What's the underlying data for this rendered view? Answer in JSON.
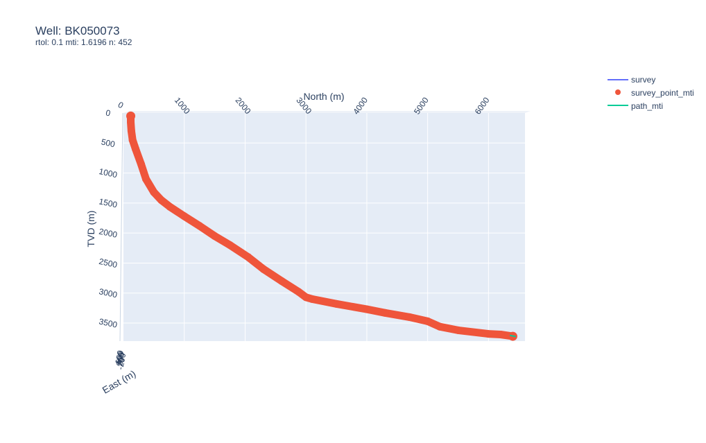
{
  "chart_data": {
    "type": "line",
    "title": "Well: BK050073",
    "subtitle": "rtol: 0.1 mti: 1.6196 n: 452",
    "xaxis": {
      "label": "North (m)",
      "range": [
        0,
        6600
      ],
      "ticks": [
        0,
        1000,
        2000,
        3000,
        4000,
        5000,
        6000
      ],
      "tick_labels": [
        "0",
        "1000",
        "2000",
        "3000",
        "4000",
        "5000",
        "6000"
      ]
    },
    "yaxis": {
      "label": "TVD (m)",
      "range": [
        0,
        3800
      ],
      "reversed": true,
      "ticks": [
        0,
        500,
        1000,
        1500,
        2000,
        2500,
        3000,
        3500
      ],
      "tick_labels": [
        "0",
        "500",
        "1000",
        "1500",
        "2000",
        "2500",
        "3000",
        "3500"
      ]
    },
    "zaxis": {
      "label": "East (m)",
      "tick_labels": [
        "600",
        "400",
        "200",
        "0",
        "-200"
      ]
    },
    "legend": {
      "position": "top-right",
      "entries": [
        {
          "name": "survey",
          "kind": "line",
          "color": "#636efa"
        },
        {
          "name": "survey_point_mti",
          "kind": "marker",
          "color": "#ef553b"
        },
        {
          "name": "path_mti",
          "kind": "line",
          "color": "#00cc96"
        }
      ]
    },
    "series": [
      {
        "name": "survey_point_mti",
        "color": "#ef553b",
        "points": [
          [
            120,
            50
          ],
          [
            120,
            150
          ],
          [
            130,
            300
          ],
          [
            150,
            450
          ],
          [
            200,
            600
          ],
          [
            290,
            850
          ],
          [
            370,
            1100
          ],
          [
            500,
            1320
          ],
          [
            620,
            1450
          ],
          [
            760,
            1560
          ],
          [
            1000,
            1720
          ],
          [
            1250,
            1880
          ],
          [
            1500,
            2050
          ],
          [
            1750,
            2200
          ],
          [
            2050,
            2400
          ],
          [
            2300,
            2600
          ],
          [
            2600,
            2800
          ],
          [
            2880,
            2980
          ],
          [
            3000,
            3070
          ],
          [
            3100,
            3100
          ],
          [
            3500,
            3180
          ],
          [
            4000,
            3270
          ],
          [
            4300,
            3330
          ],
          [
            4700,
            3400
          ],
          [
            5000,
            3470
          ],
          [
            5200,
            3560
          ],
          [
            5500,
            3620
          ],
          [
            6000,
            3680
          ],
          [
            6200,
            3690
          ],
          [
            6400,
            3720
          ]
        ]
      },
      {
        "name": "path_mti",
        "color": "#00cc96",
        "points": [
          [
            6350,
            3705
          ],
          [
            6450,
            3725
          ]
        ]
      }
    ],
    "grid": true,
    "background_color": "#e5ecf6"
  }
}
